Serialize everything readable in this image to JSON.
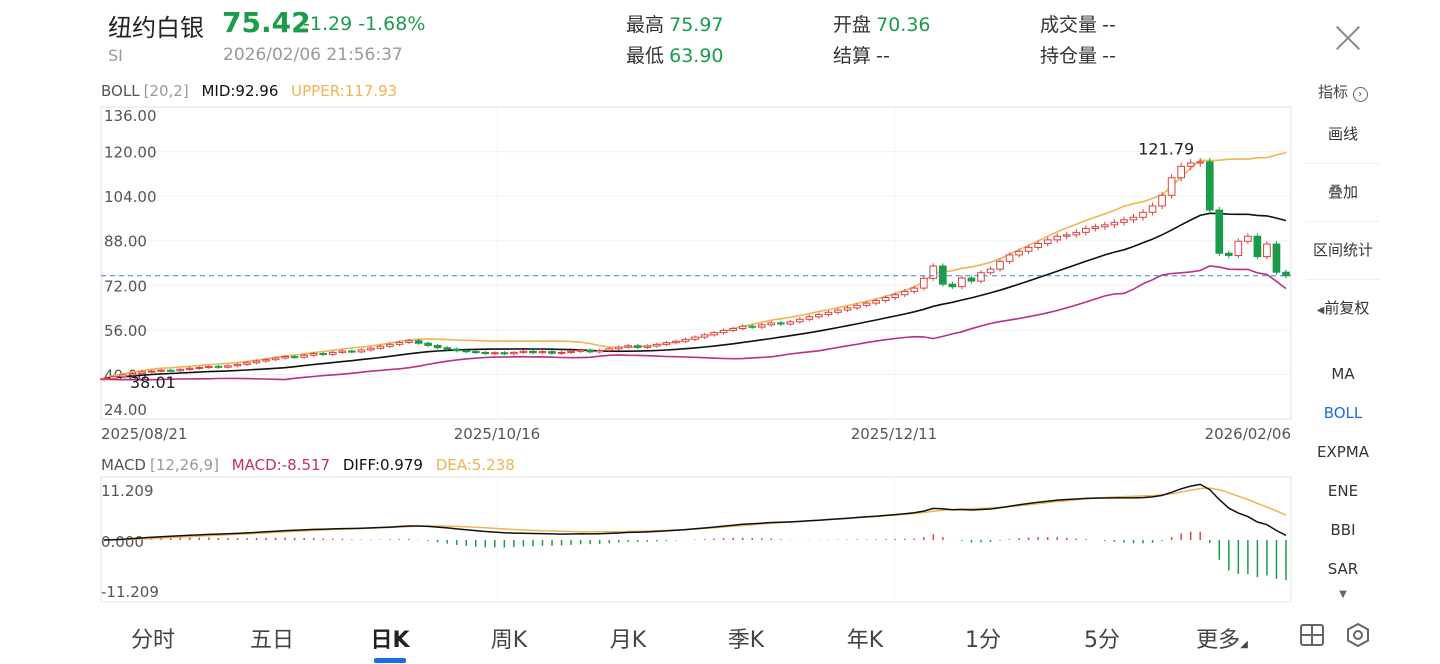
{
  "header": {
    "name": "纽约白银",
    "code": "SI",
    "price": "75.42",
    "change": "-1.29 -1.68%",
    "datetime": "2026/02/06 21:56:37",
    "stats": [
      {
        "label": "最高",
        "value": "75.97",
        "tone": "green"
      },
      {
        "label": "最低",
        "value": "63.90",
        "tone": "green"
      },
      {
        "label": "开盘",
        "value": "70.36",
        "tone": "green"
      },
      {
        "label": "结算",
        "value": "--",
        "tone": "gray"
      },
      {
        "label": "成交量",
        "value": "--",
        "tone": "gray"
      },
      {
        "label": "持仓量",
        "value": "--",
        "tone": "gray"
      }
    ]
  },
  "indicator_link": "指标",
  "boll_legend": {
    "name": "BOLL",
    "params": "[20,2]",
    "mid": "MID:92.96",
    "upper": "UPPER:117.93"
  },
  "macd_legend": {
    "name": "MACD",
    "params": "[12,26,9]",
    "macd": "MACD:-8.517",
    "diff": "DIFF:0.979",
    "dea": "DEA:5.238"
  },
  "colors": {
    "up": "#e04040",
    "down": "#1a9c4a",
    "mid": "#111111",
    "upper": "#f0b450",
    "lower": "#b8308a",
    "diff": "#111111",
    "dea": "#f0b450",
    "accent": "#1a6fe0"
  },
  "side_panel": {
    "tools": [
      "画线",
      "叠加",
      "区间统计",
      "前复权"
    ],
    "indicators": [
      "MA",
      "BOLL",
      "EXPMA",
      "ENE",
      "BBI",
      "SAR"
    ],
    "active_indicator": "BOLL"
  },
  "tabs": [
    "分时",
    "五日",
    "日K",
    "周K",
    "月K",
    "季K",
    "年K",
    "1分",
    "5分",
    "更多"
  ],
  "active_tab": "日K",
  "chart_data": [
    {
      "type": "candlestick",
      "price_axis_ticks": [
        "136.00",
        "120.00",
        "104.00",
        "88.00",
        "72.00",
        "56.00",
        "40.00",
        "24.00"
      ],
      "ylim": [
        24,
        136
      ],
      "date_ticks": [
        "2025/08/21",
        "2025/10/16",
        "2025/12/11",
        "2026/02/06"
      ],
      "annotations": {
        "high_label": "121.79",
        "low_label": "38.01",
        "current_line": 75.42
      },
      "close_series": [
        38.5,
        39.2,
        39.8,
        40.3,
        40.9,
        41.2,
        41.5,
        41.3,
        41.8,
        42.2,
        42.5,
        42.9,
        42.6,
        43.1,
        43.6,
        44.2,
        44.8,
        45.3,
        45.9,
        46.4,
        46.2,
        46.9,
        47.5,
        47.2,
        47.9,
        48.4,
        48.1,
        48.8,
        49.4,
        50.1,
        50.8,
        51.5,
        52.1,
        51.2,
        50.4,
        49.6,
        49.1,
        48.5,
        48.2,
        47.9,
        47.5,
        47.8,
        47.4,
        47.9,
        48.3,
        47.8,
        48.2,
        47.6,
        47.9,
        48.3,
        48.7,
        48.1,
        48.6,
        49.2,
        49.8,
        50.3,
        49.7,
        50.2,
        50.8,
        51.4,
        51.9,
        52.6,
        53.4,
        54.2,
        55.0,
        55.8,
        56.5,
        57.3,
        57.0,
        57.8,
        58.5,
        58.1,
        58.9,
        59.8,
        60.7,
        61.5,
        62.3,
        63.1,
        63.9,
        64.8,
        65.6,
        66.5,
        67.6,
        68.6,
        69.8,
        71.0,
        74.5,
        78.9,
        72.4,
        71.5,
        74.6,
        73.5,
        76.5,
        77.8,
        80.6,
        82.9,
        84.2,
        85.6,
        87.0,
        88.3,
        89.6,
        90.1,
        91.0,
        92.4,
        93.0,
        93.7,
        94.6,
        95.5,
        96.4,
        98.2,
        100.5,
        104.3,
        110.6,
        114.7,
        115.9,
        116.3,
        99.0,
        83.5,
        82.7,
        87.8,
        89.6,
        82.3,
        86.8,
        76.7,
        75.42
      ],
      "series": [
        {
          "name": "MID",
          "last": 92.96
        },
        {
          "name": "UPPER",
          "last": 117.93
        },
        {
          "name": "LOWER",
          "last": 68.0
        }
      ]
    },
    {
      "type": "bar+line",
      "name": "MACD",
      "ylim": [
        -11.209,
        11.209
      ],
      "y_ticks": [
        "11.209",
        "0.000",
        "-11.209"
      ],
      "diff_last": 0.979,
      "dea_last": 5.238,
      "macd_last": -8.517
    }
  ]
}
